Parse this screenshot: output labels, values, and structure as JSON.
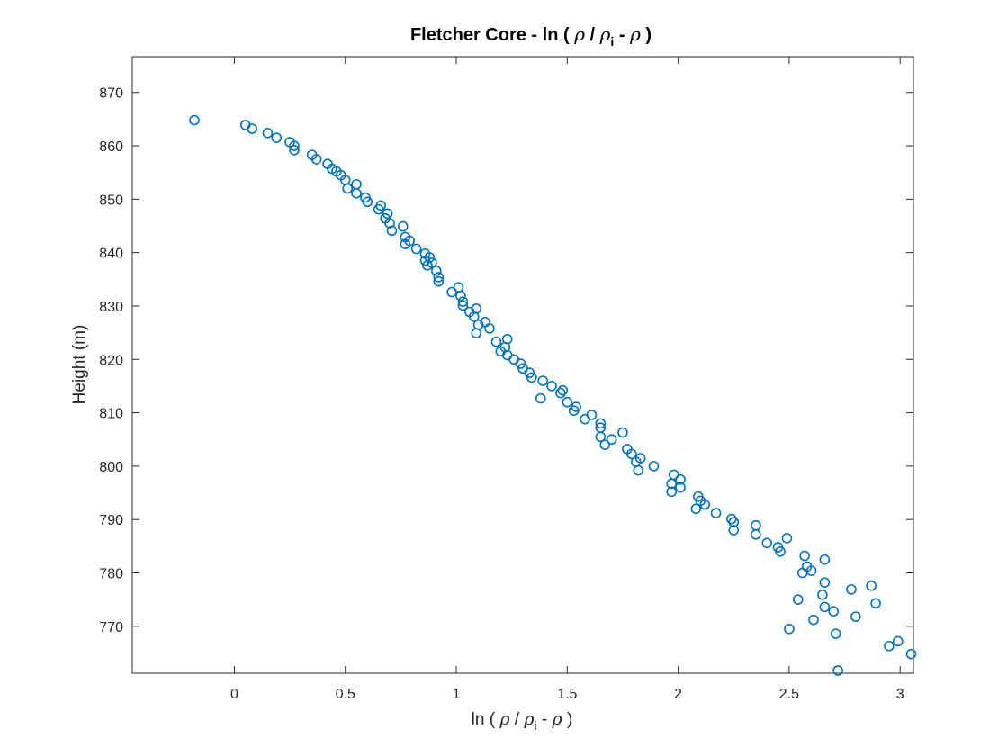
{
  "chart_data": {
    "type": "scatter",
    "title": {
      "prefix": "Fletcher Core - ln ( ",
      "rho": "ρ",
      "slash": " / ",
      "rho_i": "ρ",
      "sub": "i",
      "minus": " - ",
      "rho2": "ρ",
      "suffix": " )"
    },
    "xlabel": {
      "prefix": "ln ( ",
      "rho": "ρ",
      "slash": " / ",
      "rho_i": "ρ",
      "sub": "i",
      "minus": " - ",
      "rho2": "ρ",
      "suffix": " )"
    },
    "ylabel": "Height (m)",
    "xlim": [
      -0.46,
      3.06
    ],
    "ylim": [
      761.2,
      876.7
    ],
    "xticks": [
      0,
      0.5,
      1,
      1.5,
      2,
      2.5,
      3
    ],
    "xtick_labels": [
      "0",
      "0.5",
      "1",
      "1.5",
      "2",
      "2.5",
      "3"
    ],
    "yticks": [
      770,
      780,
      790,
      800,
      810,
      820,
      830,
      840,
      850,
      860,
      870
    ],
    "ytick_labels": [
      "770",
      "780",
      "790",
      "800",
      "810",
      "820",
      "830",
      "840",
      "850",
      "860",
      "870"
    ],
    "grid": false,
    "marker_color": "#0072BD",
    "points": [
      [
        -0.18,
        864.8
      ],
      [
        0.05,
        863.9
      ],
      [
        0.08,
        863.2
      ],
      [
        0.15,
        862.4
      ],
      [
        0.19,
        861.5
      ],
      [
        0.25,
        860.7
      ],
      [
        0.27,
        860.0
      ],
      [
        0.27,
        859.2
      ],
      [
        0.35,
        858.3
      ],
      [
        0.37,
        857.5
      ],
      [
        0.42,
        856.6
      ],
      [
        0.44,
        855.7
      ],
      [
        0.46,
        855.2
      ],
      [
        0.48,
        854.5
      ],
      [
        0.5,
        853.6
      ],
      [
        0.51,
        852.0
      ],
      [
        0.55,
        852.8
      ],
      [
        0.55,
        851.1
      ],
      [
        0.59,
        850.3
      ],
      [
        0.6,
        849.5
      ],
      [
        0.65,
        848.1
      ],
      [
        0.66,
        848.8
      ],
      [
        0.68,
        846.4
      ],
      [
        0.69,
        847.3
      ],
      [
        0.7,
        845.5
      ],
      [
        0.71,
        844.1
      ],
      [
        0.76,
        844.9
      ],
      [
        0.77,
        842.9
      ],
      [
        0.77,
        841.6
      ],
      [
        0.79,
        842.2
      ],
      [
        0.82,
        840.7
      ],
      [
        0.86,
        839.8
      ],
      [
        0.86,
        838.5
      ],
      [
        0.87,
        837.6
      ],
      [
        0.88,
        839.1
      ],
      [
        0.89,
        838.1
      ],
      [
        0.91,
        836.6
      ],
      [
        0.92,
        835.4
      ],
      [
        0.92,
        834.6
      ],
      [
        0.98,
        832.6
      ],
      [
        1.01,
        833.5
      ],
      [
        1.02,
        831.9
      ],
      [
        1.03,
        830.8
      ],
      [
        1.03,
        830.1
      ],
      [
        1.06,
        828.9
      ],
      [
        1.08,
        828.0
      ],
      [
        1.09,
        829.5
      ],
      [
        1.09,
        824.9
      ],
      [
        1.1,
        826.5
      ],
      [
        1.13,
        827.0
      ],
      [
        1.15,
        825.8
      ],
      [
        1.18,
        823.3
      ],
      [
        1.2,
        821.5
      ],
      [
        1.22,
        822.3
      ],
      [
        1.23,
        823.8
      ],
      [
        1.23,
        820.8
      ],
      [
        1.26,
        820.0
      ],
      [
        1.29,
        819.2
      ],
      [
        1.3,
        818.3
      ],
      [
        1.33,
        817.5
      ],
      [
        1.34,
        816.6
      ],
      [
        1.38,
        812.7
      ],
      [
        1.39,
        816.0
      ],
      [
        1.43,
        815.0
      ],
      [
        1.47,
        813.7
      ],
      [
        1.48,
        814.2
      ],
      [
        1.5,
        812.0
      ],
      [
        1.53,
        810.4
      ],
      [
        1.54,
        811.1
      ],
      [
        1.58,
        808.8
      ],
      [
        1.61,
        809.6
      ],
      [
        1.65,
        808.0
      ],
      [
        1.65,
        807.2
      ],
      [
        1.65,
        805.5
      ],
      [
        1.67,
        804.0
      ],
      [
        1.7,
        805.0
      ],
      [
        1.75,
        806.3
      ],
      [
        1.77,
        803.2
      ],
      [
        1.79,
        802.3
      ],
      [
        1.81,
        800.8
      ],
      [
        1.82,
        799.2
      ],
      [
        1.83,
        801.5
      ],
      [
        1.89,
        800.0
      ],
      [
        1.97,
        796.7
      ],
      [
        1.97,
        795.2
      ],
      [
        1.98,
        798.4
      ],
      [
        2.01,
        797.5
      ],
      [
        2.01,
        796.0
      ],
      [
        2.08,
        792.0
      ],
      [
        2.09,
        794.3
      ],
      [
        2.1,
        793.5
      ],
      [
        2.12,
        792.8
      ],
      [
        2.17,
        791.2
      ],
      [
        2.24,
        790.1
      ],
      [
        2.25,
        789.5
      ],
      [
        2.25,
        788.0
      ],
      [
        2.35,
        788.9
      ],
      [
        2.35,
        787.2
      ],
      [
        2.4,
        785.6
      ],
      [
        2.45,
        784.8
      ],
      [
        2.46,
        784.0
      ],
      [
        2.49,
        786.5
      ],
      [
        2.5,
        769.5
      ],
      [
        2.54,
        775.0
      ],
      [
        2.56,
        780.0
      ],
      [
        2.57,
        783.2
      ],
      [
        2.58,
        781.2
      ],
      [
        2.6,
        780.4
      ],
      [
        2.61,
        771.2
      ],
      [
        2.65,
        775.9
      ],
      [
        2.66,
        773.6
      ],
      [
        2.66,
        778.2
      ],
      [
        2.66,
        782.5
      ],
      [
        2.7,
        772.8
      ],
      [
        2.71,
        768.6
      ],
      [
        2.72,
        761.7
      ],
      [
        2.78,
        776.9
      ],
      [
        2.8,
        771.8
      ],
      [
        2.87,
        777.6
      ],
      [
        2.89,
        774.3
      ],
      [
        2.95,
        766.3
      ],
      [
        2.99,
        767.2
      ],
      [
        3.05,
        764.8
      ]
    ]
  }
}
